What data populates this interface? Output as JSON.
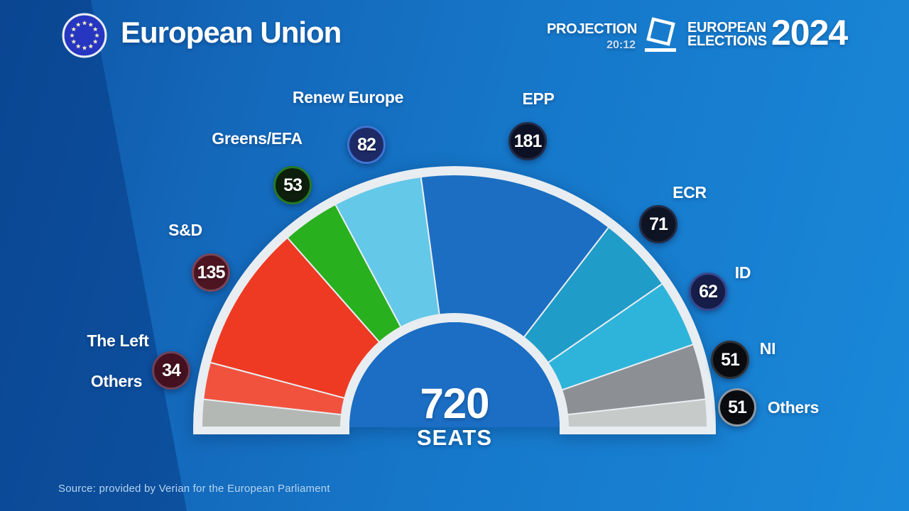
{
  "header": {
    "title": "European Union",
    "projection_label": "PROJECTION",
    "projection_time": "20:12",
    "brand_line1": "EUROPEAN",
    "brand_line2": "ELECTIONS",
    "brand_year": "2024"
  },
  "center": {
    "total": "720",
    "caption": "SEATS"
  },
  "footer": {
    "source": "Source: provided by Verian for the European Parliament"
  },
  "callouts": {
    "renew": {
      "label": "Renew Europe",
      "value": "82",
      "badge_fill": "#1d2a66",
      "badge_ring": "#3f74d2"
    },
    "greens": {
      "label": "Greens/EFA",
      "value": "53",
      "badge_fill": "#0d1f0c",
      "badge_ring": "#257a24"
    },
    "sd": {
      "label": "S&D",
      "value": "135",
      "badge_fill": "#4d1522",
      "badge_ring": "#7c4656"
    },
    "the_left": {
      "label": "The Left",
      "value": "34",
      "badge_fill": "#451120",
      "badge_ring": "#6d4258"
    },
    "others_left": {
      "label": "Others"
    },
    "epp": {
      "label": "EPP",
      "value": "181",
      "badge_fill": "#0d1126",
      "badge_ring": "#222b44"
    },
    "ecr": {
      "label": "ECR",
      "value": "71",
      "badge_fill": "#0e1424",
      "badge_ring": "#222b44"
    },
    "id": {
      "label": "ID",
      "value": "62",
      "badge_fill": "#151d48",
      "badge_ring": "#39478e"
    },
    "ni": {
      "label": "NI",
      "value": "51",
      "badge_fill": "#0a0b0f",
      "badge_ring": "#2e3238"
    },
    "others_right": {
      "label": "Others",
      "value": "51",
      "badge_fill": "#0a0b0f",
      "badge_ring": "#8e98a2"
    }
  },
  "chart_data": {
    "type": "hemicycle",
    "title": "European Elections 2024 seat projection (20:12)",
    "total_seats": 720,
    "legend_position": "around-arc",
    "series": [
      {
        "name": "Others left",
        "party": "Others",
        "seats": 25.5,
        "color": "#b4b8b5"
      },
      {
        "name": "The Left",
        "party": "The Left",
        "seats": 34,
        "color": "#f0523e"
      },
      {
        "name": "S&D",
        "party": "S&D",
        "seats": 135,
        "color": "#ee3a23"
      },
      {
        "name": "Greens EFA",
        "party": "Greens/EFA",
        "seats": 53,
        "color": "#28b01e"
      },
      {
        "name": "Renew Europe",
        "party": "Renew Europe",
        "seats": 82,
        "color": "#64c8e8"
      },
      {
        "name": "EPP",
        "party": "EPP",
        "seats": 181,
        "color": "#1b6ec2"
      },
      {
        "name": "ECR",
        "party": "ECR",
        "seats": 71,
        "color": "#1f9cc8"
      },
      {
        "name": "ID",
        "party": "ID",
        "seats": 62,
        "color": "#2eb4da"
      },
      {
        "name": "NI",
        "party": "NI",
        "seats": 51,
        "color": "#8c9094"
      },
      {
        "name": "Others right",
        "party": "Others",
        "seats": 25.5,
        "color": "#c6cac8"
      }
    ],
    "note": "Others (51 seats) is drawn split across both ends of the arc"
  },
  "colors": {
    "background_right": "#1678ca",
    "background_left": "#0f58a8",
    "arc_outline": "#e8edf1",
    "inner_disc": "#1b6ec4",
    "eu_flag_blue": "#2636c0",
    "eu_flag_stars": "#f1edc2",
    "text_primary": "#ffffff",
    "text_muted": "#b5d4ee"
  }
}
